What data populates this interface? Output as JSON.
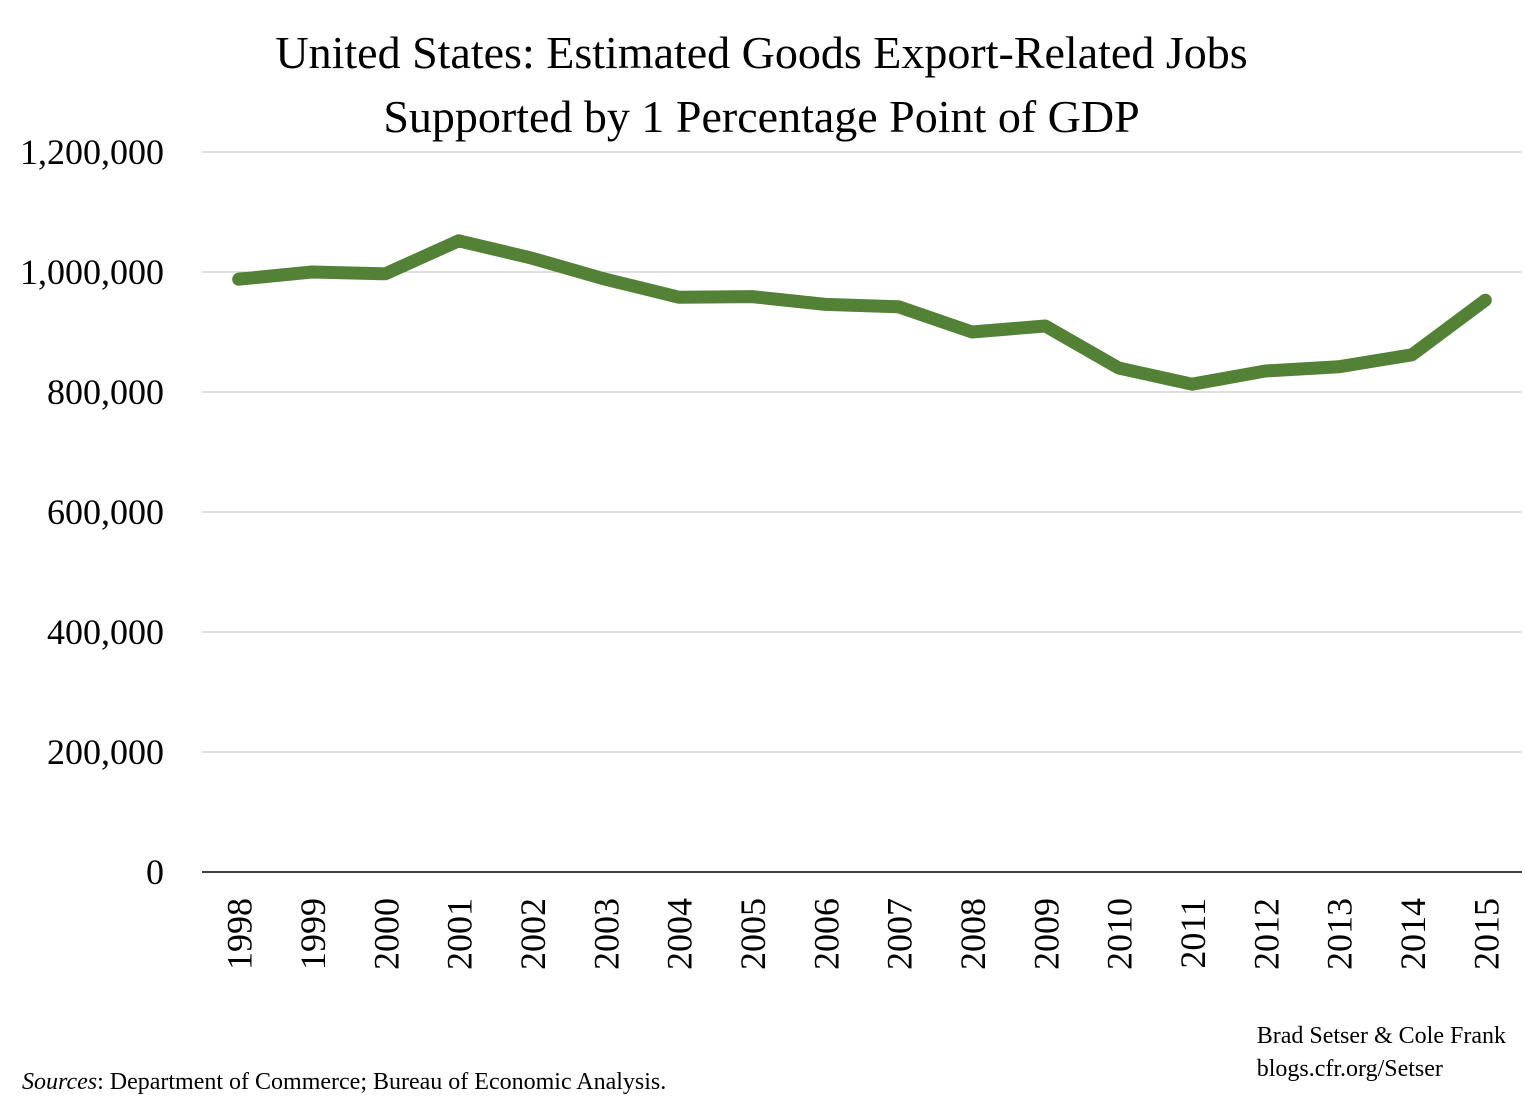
{
  "chart_data": {
    "type": "line",
    "title": "United States: Estimated Goods Export-Related Jobs",
    "subtitle": "Supported by 1 Percentage Point of GDP",
    "categories": [
      "1998",
      "1999",
      "2000",
      "2001",
      "2002",
      "2003",
      "2004",
      "2005",
      "2006",
      "2007",
      "2008",
      "2009",
      "2010",
      "2011",
      "2012",
      "2013",
      "2014",
      "2015"
    ],
    "series": [
      {
        "values": [
          988000,
          1000000,
          997000,
          1052000,
          1023000,
          988000,
          958000,
          959000,
          946000,
          942000,
          900000,
          910000,
          840000,
          813000,
          835000,
          842000,
          862000,
          953000
        ]
      }
    ],
    "ylim": [
      0,
      1200000
    ],
    "yticks": [
      0,
      200000,
      400000,
      600000,
      800000,
      1000000,
      1200000
    ],
    "ytick_labels": [
      "0",
      "200,000",
      "400,000",
      "600,000",
      "800,000",
      "1,000,000",
      "1,200,000"
    ],
    "grid": true,
    "line_color": "#538135",
    "grid_color": "#bfbfbf"
  },
  "credit": {
    "line1": "Brad Setser & Cole Frank",
    "line2": "blogs.cfr.org/Setser"
  },
  "sources": {
    "label": "Sources",
    "text": ": Department  of Commerce; Bureau of Economic Analysis."
  }
}
